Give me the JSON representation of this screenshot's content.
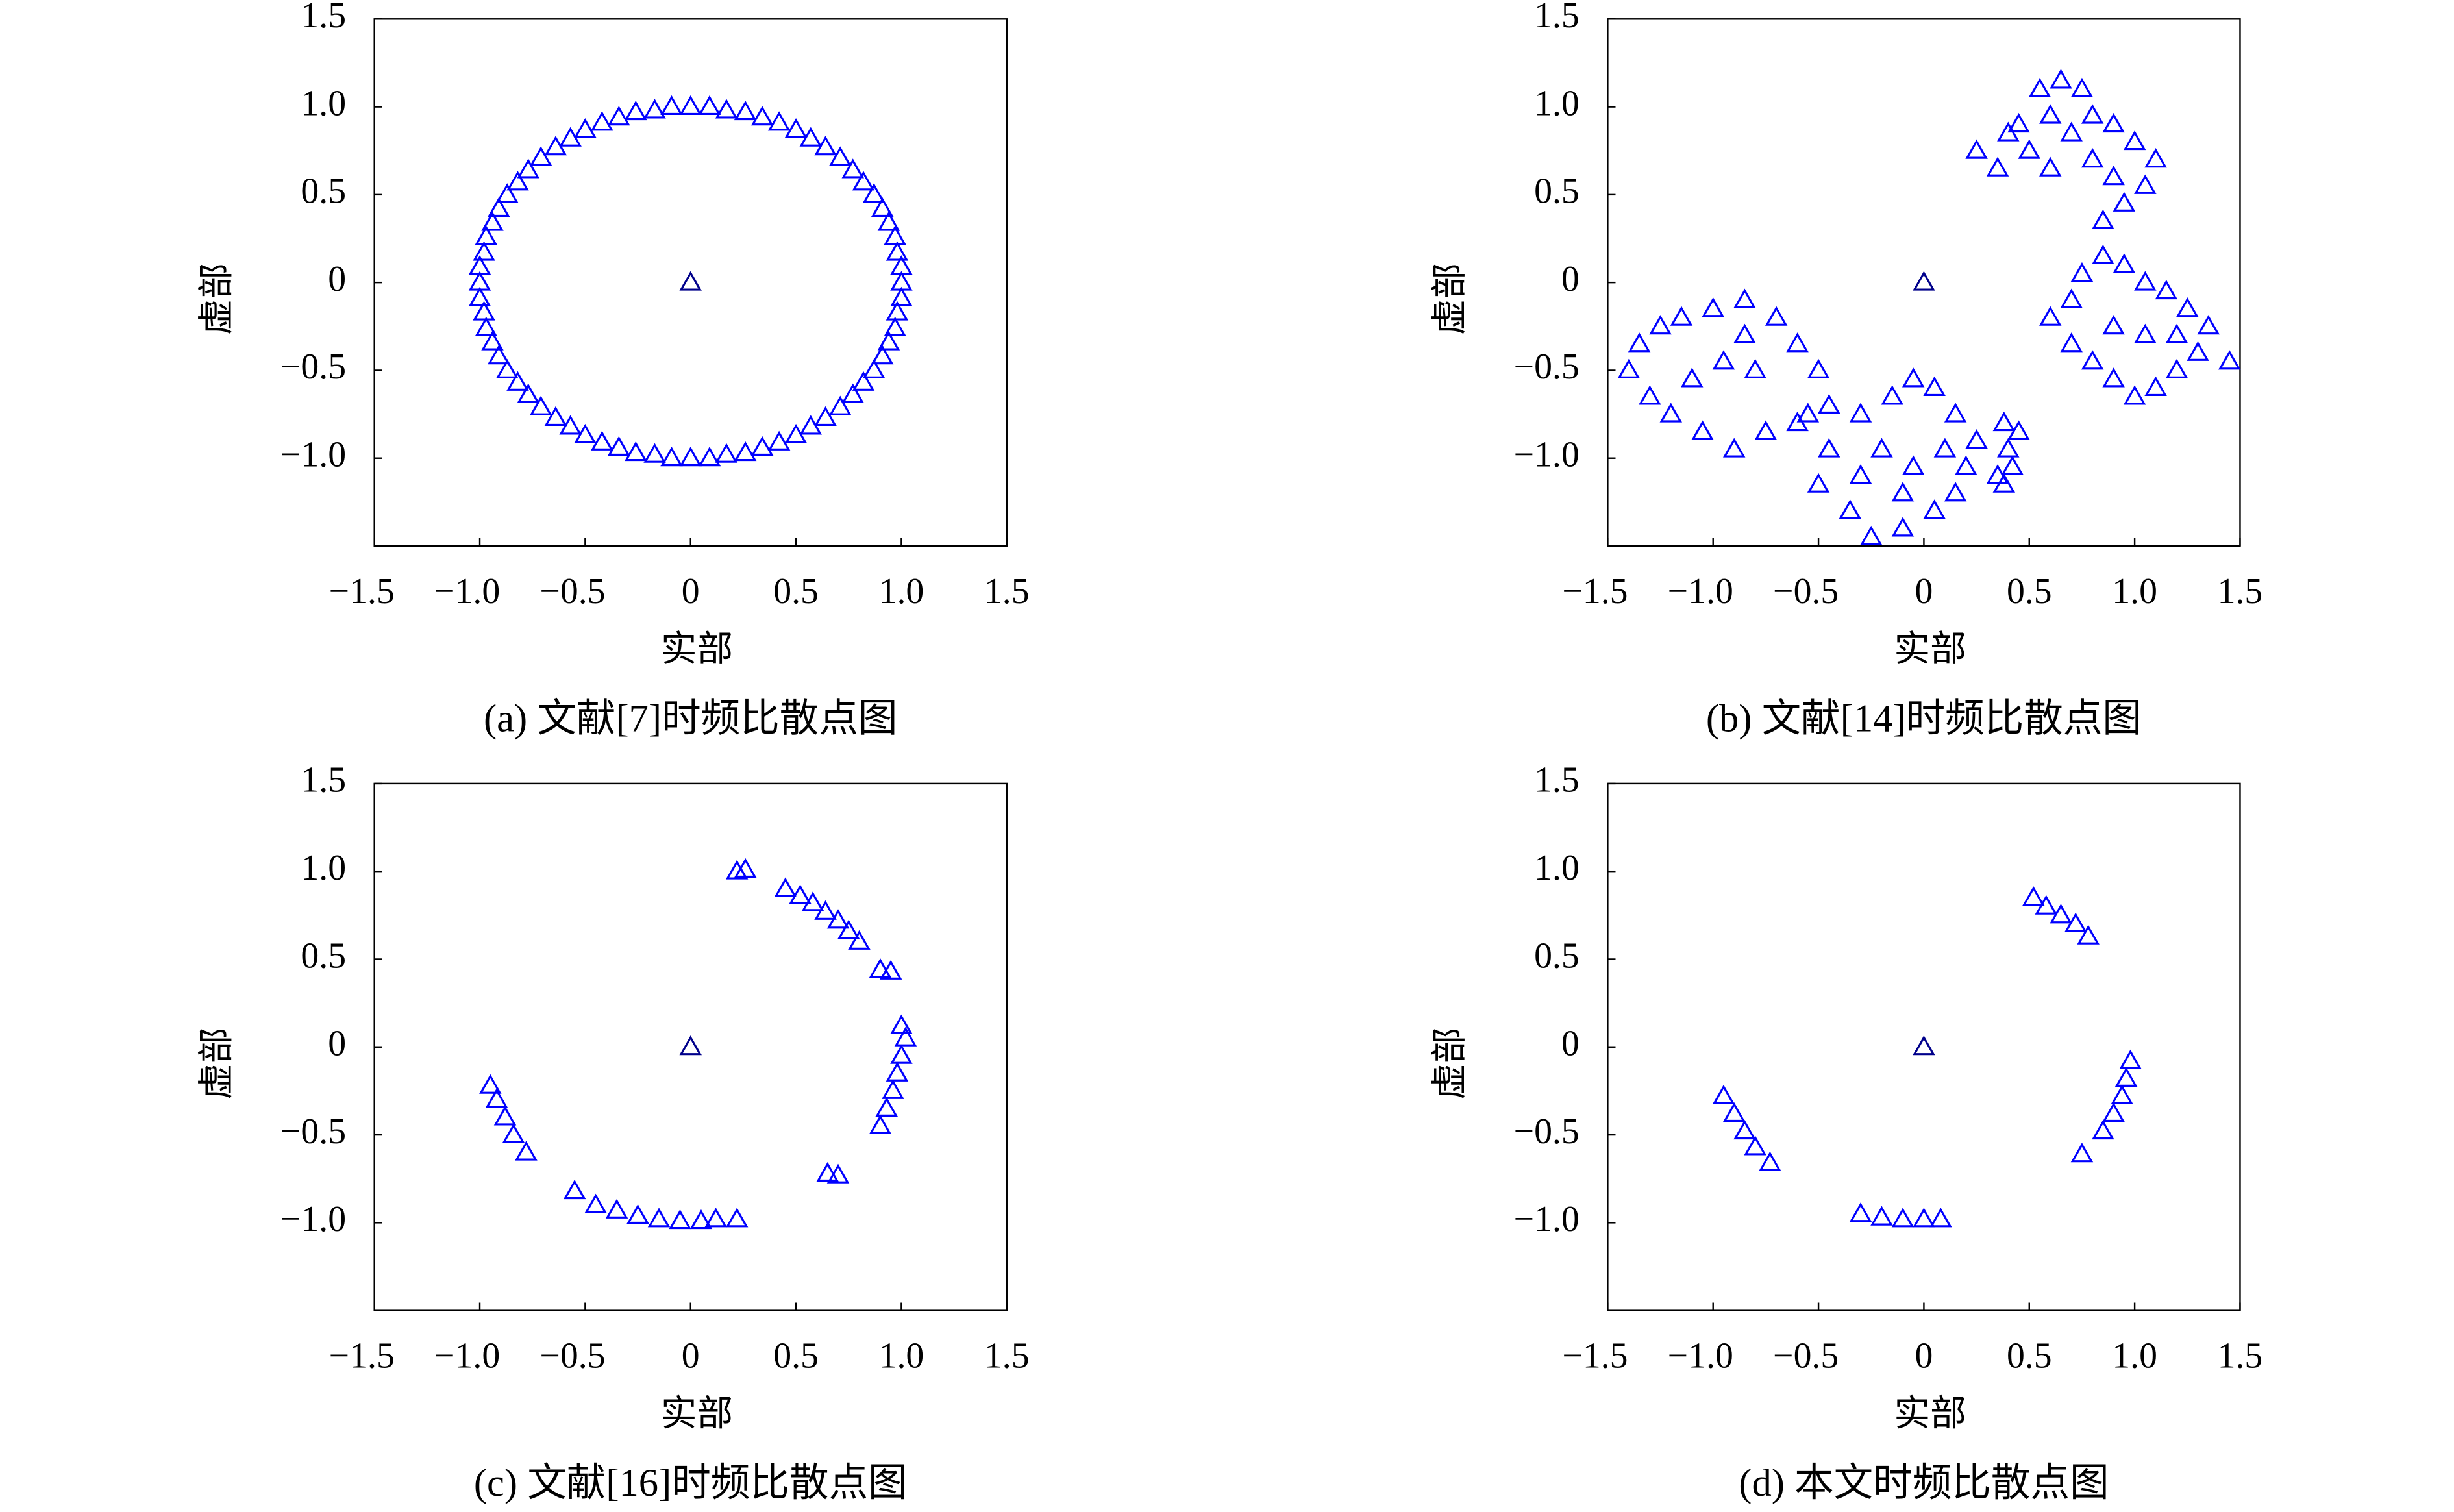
{
  "chart_data": [
    {
      "type": "scatter",
      "caption": "(a) 文献[7]时频比散点图",
      "xlabel": "实部",
      "ylabel": "虚部",
      "xlim": [
        -1.5,
        1.5
      ],
      "ylim": [
        -1.5,
        1.5
      ],
      "xticks": [
        {
          "value": -1.5,
          "label": "−1.5"
        },
        {
          "value": -1,
          "label": "−1.0"
        },
        {
          "value": -0.5,
          "label": "−0.5"
        },
        0,
        0.5,
        {
          "value": 1,
          "label": "1.0"
        },
        1.5
      ],
      "yticks": [
        {
          "value": -1,
          "label": "−1.0"
        },
        {
          "value": -0.5,
          "label": "−0.5"
        },
        0,
        0.5,
        {
          "value": 1,
          "label": "1.0"
        },
        1.5
      ],
      "series": [
        {
          "color": "#0000ff",
          "x": [
            1,
            0.98,
            0.94,
            0.87,
            0.77,
            0.64,
            0.5,
            0.34,
            0.17,
            0,
            -0.17,
            -0.34,
            -0.5,
            -0.64,
            -0.77,
            -0.87,
            -0.94,
            -0.98,
            -1,
            -0.98,
            -0.94,
            -0.87,
            -0.77,
            -0.64,
            -0.5,
            -0.34,
            -0.17,
            0,
            0.17,
            0.34,
            0.5,
            0.64,
            0.77,
            0.87,
            0.94,
            0.98,
            1,
            0.97,
            0.91,
            0.82,
            0.71,
            0.57,
            0.42,
            0.26,
            0.09,
            -0.09,
            -0.26,
            -0.42,
            -0.57,
            -0.71,
            -0.82,
            -0.91,
            -0.97,
            -1,
            -1,
            -0.97,
            -0.91,
            -0.82,
            -0.71,
            -0.57,
            -0.42,
            -0.26,
            -0.09,
            0.09,
            0.26,
            0.42,
            0.57,
            0.71,
            0.82,
            0.91,
            0.97,
            1
          ],
          "y": [
            0,
            0.17,
            0.34,
            0.5,
            0.64,
            0.77,
            0.87,
            0.94,
            0.98,
            1,
            0.98,
            0.94,
            0.87,
            0.77,
            0.64,
            0.5,
            0.34,
            0.17,
            0,
            -0.17,
            -0.34,
            -0.5,
            -0.64,
            -0.77,
            -0.87,
            -0.94,
            -0.98,
            -1,
            -0.98,
            -0.94,
            -0.87,
            -0.77,
            -0.64,
            -0.5,
            -0.34,
            -0.17,
            0.09,
            0.26,
            0.42,
            0.57,
            0.71,
            0.82,
            0.91,
            0.97,
            1,
            1,
            0.97,
            0.91,
            0.82,
            0.71,
            0.57,
            0.42,
            0.26,
            0.09,
            -0.09,
            -0.26,
            -0.42,
            -0.57,
            -0.71,
            -0.82,
            -0.91,
            -0.97,
            -1,
            -1,
            -0.97,
            -0.91,
            -0.82,
            -0.71,
            -0.57,
            -0.42,
            -0.26,
            -0.09
          ]
        },
        {
          "color": "#00008b",
          "x": [
            0
          ],
          "y": [
            0
          ]
        }
      ]
    },
    {
      "type": "scatter",
      "caption": "(b) 文献[14]时频比散点图",
      "xlabel": "实部",
      "ylabel": "虚部",
      "xlim": [
        -1.5,
        1.5
      ],
      "ylim": [
        -1.5,
        1.5
      ],
      "xticks": [
        {
          "value": -1.5,
          "label": "−1.5"
        },
        {
          "value": -1,
          "label": "−1.0"
        },
        {
          "value": -0.5,
          "label": "−0.5"
        },
        0,
        0.5,
        {
          "value": 1,
          "label": "1.0"
        },
        1.5
      ],
      "yticks": [
        {
          "value": -1,
          "label": "−1.0"
        },
        {
          "value": -0.5,
          "label": "−0.5"
        },
        0,
        0.5,
        {
          "value": 1,
          "label": "1.0"
        },
        1.5
      ],
      "series": [
        {
          "color": "#0000ff",
          "x": [
            0.25,
            0.35,
            0.45,
            0.55,
            0.65,
            0.75,
            0.6,
            0.7,
            0.8,
            0.9,
            1.0,
            1.1,
            1.05,
            0.9,
            0.8,
            0.5,
            0.4,
            0.6,
            0.95,
            0.85,
            0.6,
            0.7,
            0.75,
            0.85,
            0.95,
            1.05,
            1.15,
            1.25,
            1.35,
            1.45,
            1.3,
            1.2,
            1.1,
            1.0,
            0.9,
            0.8,
            0.7,
            0.9,
            1.05,
            1.2,
            -1.4,
            -1.35,
            -1.25,
            -1.15,
            -1.0,
            -0.85,
            -0.7,
            -0.6,
            -0.5,
            -0.45,
            -0.6,
            -0.75,
            -0.9,
            -1.05,
            -1.2,
            -1.3,
            -1.1,
            -0.95,
            -0.8,
            -0.85,
            -0.55,
            -0.45,
            -0.5,
            -0.35,
            -0.25,
            -0.1,
            0.05,
            0.15,
            0.2,
            0.25,
            0.15,
            0.05,
            -0.05,
            -0.15,
            -0.3,
            -0.2,
            -0.05,
            0.1,
            -0.3,
            -0.1,
            0.38,
            0.45,
            0.4,
            0.42,
            0.38,
            0.35
          ],
          "y": [
            0.75,
            0.65,
            0.9,
            1.1,
            1.15,
            1.1,
            0.95,
            0.85,
            0.95,
            0.9,
            0.8,
            0.7,
            0.55,
            0.6,
            0.7,
            0.75,
            0.85,
            0.65,
            0.45,
            0.35,
            -0.2,
            -0.1,
            0.05,
            0.15,
            0.1,
            0.0,
            -0.05,
            -0.15,
            -0.25,
            -0.45,
            -0.4,
            -0.5,
            -0.6,
            -0.65,
            -0.55,
            -0.45,
            -0.35,
            -0.25,
            -0.3,
            -0.3,
            -0.5,
            -0.35,
            -0.25,
            -0.2,
            -0.15,
            -0.1,
            -0.2,
            -0.35,
            -0.5,
            -0.7,
            -0.8,
            -0.85,
            -0.95,
            -0.85,
            -0.75,
            -0.65,
            -0.55,
            -0.45,
            -0.5,
            -0.3,
            -0.75,
            -0.95,
            -1.15,
            -1.3,
            -1.45,
            -1.4,
            -1.3,
            -1.2,
            -1.05,
            -0.9,
            -0.75,
            -0.6,
            -0.55,
            -0.65,
            -0.75,
            -0.95,
            -1.05,
            -0.95,
            -1.1,
            -1.2,
            -0.8,
            -0.85,
            -0.95,
            -1.05,
            -1.15,
            -1.1
          ]
        },
        {
          "color": "#00008b",
          "x": [
            0
          ],
          "y": [
            0
          ]
        }
      ]
    },
    {
      "type": "scatter",
      "caption": "(c) 文献[16]时频比散点图",
      "xlabel": "实部",
      "ylabel": "虚部",
      "xlim": [
        -1.5,
        1.5
      ],
      "ylim": [
        -1.5,
        1.5
      ],
      "xticks": [
        {
          "value": -1.5,
          "label": "−1.5"
        },
        {
          "value": -1,
          "label": "−1.0"
        },
        {
          "value": -0.5,
          "label": "−0.5"
        },
        0,
        0.5,
        {
          "value": 1,
          "label": "1.0"
        },
        1.5
      ],
      "yticks": [
        {
          "value": -1,
          "label": "−1.0"
        },
        {
          "value": -0.5,
          "label": "−0.5"
        },
        0,
        0.5,
        {
          "value": 1,
          "label": "1.0"
        },
        1.5
      ],
      "series": [
        {
          "color": "#0000ff",
          "x": [
            0.22,
            0.26,
            0.45,
            0.52,
            0.58,
            0.64,
            0.7,
            0.75,
            0.8,
            0.9,
            0.95,
            1.0,
            1.02,
            1.0,
            0.98,
            0.96,
            0.93,
            0.9,
            0.65,
            0.7,
            -0.55,
            -0.45,
            -0.35,
            -0.25,
            -0.15,
            -0.05,
            0.05,
            0.12,
            0.22,
            -0.95,
            -0.92,
            -0.88,
            -0.84,
            -0.78
          ],
          "y": [
            1.0,
            1.01,
            0.9,
            0.86,
            0.82,
            0.77,
            0.72,
            0.66,
            0.6,
            0.44,
            0.43,
            0.12,
            0.05,
            -0.05,
            -0.15,
            -0.25,
            -0.35,
            -0.45,
            -0.72,
            -0.73,
            -0.82,
            -0.9,
            -0.93,
            -0.96,
            -0.98,
            -0.99,
            -0.99,
            -0.98,
            -0.98,
            -0.22,
            -0.3,
            -0.4,
            -0.5,
            -0.6
          ]
        },
        {
          "color": "#00008b",
          "x": [
            0
          ],
          "y": [
            0
          ]
        }
      ]
    },
    {
      "type": "scatter",
      "caption": "(d) 本文时频比散点图",
      "xlabel": "实部",
      "ylabel": "虚部",
      "xlim": [
        -1.5,
        1.5
      ],
      "ylim": [
        -1.5,
        1.5
      ],
      "xticks": [
        {
          "value": -1.5,
          "label": "−1.5"
        },
        {
          "value": -1,
          "label": "−1.0"
        },
        {
          "value": -0.5,
          "label": "−0.5"
        },
        0,
        0.5,
        {
          "value": 1,
          "label": "1.0"
        },
        1.5
      ],
      "yticks": [
        {
          "value": -1,
          "label": "−1.0"
        },
        {
          "value": -0.5,
          "label": "−0.5"
        },
        0,
        0.5,
        {
          "value": 1,
          "label": "1.0"
        },
        1.5
      ],
      "series": [
        {
          "color": "#0000ff",
          "x": [
            0.52,
            0.58,
            0.65,
            0.72,
            0.78,
            0.98,
            0.96,
            0.94,
            0.9,
            0.85,
            0.75,
            -0.3,
            -0.2,
            -0.1,
            0,
            0.08,
            -0.95,
            -0.9,
            -0.85,
            -0.8,
            -0.73
          ],
          "y": [
            0.85,
            0.8,
            0.75,
            0.7,
            0.63,
            -0.08,
            -0.18,
            -0.28,
            -0.38,
            -0.48,
            -0.61,
            -0.95,
            -0.97,
            -0.98,
            -0.98,
            -0.98,
            -0.28,
            -0.38,
            -0.48,
            -0.57,
            -0.66
          ]
        },
        {
          "color": "#00008b",
          "x": [
            0
          ],
          "y": [
            0
          ]
        }
      ]
    }
  ]
}
